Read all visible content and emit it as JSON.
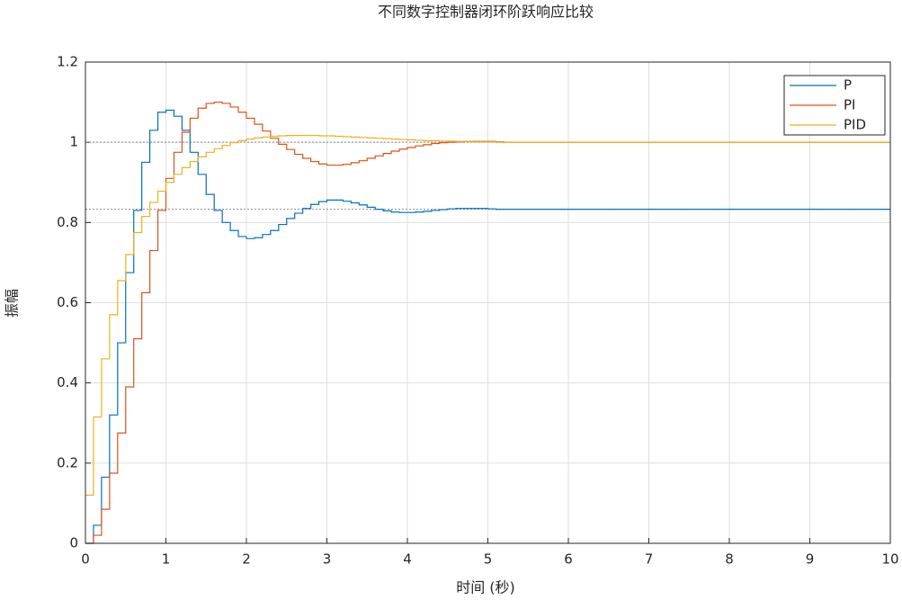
{
  "chart_data": {
    "type": "stairs",
    "title": "不同数字控制器闭环阶跃响应比较",
    "x_label": "时间 (秒)",
    "y_label": "振幅",
    "x": [
      0,
      0.1,
      0.2,
      0.3,
      0.4,
      0.5,
      0.6,
      0.7,
      0.8,
      0.9,
      1,
      1.1,
      1.2,
      1.3,
      1.4,
      1.5,
      1.6,
      1.7,
      1.8,
      1.9,
      2,
      2.1,
      2.2,
      2.3,
      2.4,
      2.5,
      2.6,
      2.7,
      2.8,
      2.9,
      3,
      3.1,
      3.2,
      3.3,
      3.4,
      3.5,
      3.6,
      3.7,
      3.8,
      3.9,
      4,
      4.1,
      4.2,
      4.3,
      4.4,
      4.5,
      4.6,
      4.7,
      4.8,
      4.9,
      5,
      5.1,
      5.2,
      5.3,
      5.4,
      5.5,
      5.6,
      5.7,
      5.8,
      5.9,
      6,
      6.1,
      6.2,
      6.3,
      6.4,
      6.5,
      6.6,
      6.7,
      6.8,
      6.9,
      7,
      7.1,
      7.2,
      7.3,
      7.4,
      7.5,
      7.6,
      7.7,
      7.8,
      7.9,
      8,
      8.1,
      8.2,
      8.3,
      8.4,
      8.5,
      8.6,
      8.7,
      8.8,
      8.9,
      9,
      9.1,
      9.2,
      9.3,
      9.4,
      9.5,
      9.6,
      9.7,
      9.8,
      9.9,
      10
    ],
    "series": [
      {
        "name": "P",
        "color": "#0072BD",
        "values": [
          0,
          0.045,
          0.165,
          0.32,
          0.5,
          0.675,
          0.83,
          0.95,
          1.03,
          1.075,
          1.08,
          1.065,
          1.03,
          0.975,
          0.92,
          0.87,
          0.83,
          0.8,
          0.78,
          0.765,
          0.76,
          0.762,
          0.77,
          0.78,
          0.795,
          0.81,
          0.823,
          0.835,
          0.845,
          0.852,
          0.856,
          0.856,
          0.853,
          0.849,
          0.844,
          0.838,
          0.833,
          0.829,
          0.826,
          0.825,
          0.825,
          0.826,
          0.828,
          0.83,
          0.832,
          0.834,
          0.835,
          0.835,
          0.835,
          0.835,
          0.834,
          0.833,
          0.833,
          0.833,
          0.833,
          0.833,
          0.833,
          0.833,
          0.833,
          0.833,
          0.833,
          0.833,
          0.833,
          0.833,
          0.833,
          0.833,
          0.833,
          0.833,
          0.833,
          0.833,
          0.833,
          0.833,
          0.833,
          0.833,
          0.833,
          0.833,
          0.833,
          0.833,
          0.833,
          0.833,
          0.833,
          0.833,
          0.833,
          0.833,
          0.833,
          0.833,
          0.833,
          0.833,
          0.833,
          0.833,
          0.833,
          0.833,
          0.833,
          0.833,
          0.833,
          0.833,
          0.833,
          0.833,
          0.833,
          0.833,
          0.833
        ]
      },
      {
        "name": "PI",
        "color": "#D95319",
        "values": [
          0,
          0.02,
          0.085,
          0.175,
          0.275,
          0.39,
          0.51,
          0.625,
          0.73,
          0.83,
          0.91,
          0.975,
          1.025,
          1.06,
          1.085,
          1.097,
          1.1,
          1.097,
          1.088,
          1.075,
          1.06,
          1.045,
          1.028,
          1.01,
          0.995,
          0.982,
          0.97,
          0.96,
          0.952,
          0.946,
          0.943,
          0.943,
          0.945,
          0.949,
          0.954,
          0.96,
          0.966,
          0.972,
          0.978,
          0.983,
          0.987,
          0.991,
          0.994,
          0.997,
          0.999,
          1,
          1.001,
          1.002,
          1.002,
          1.002,
          1.002,
          1.001,
          1,
          1,
          1,
          1,
          1,
          1,
          1,
          1,
          1,
          1,
          1,
          1,
          1,
          1,
          1,
          1,
          1,
          1,
          1,
          1,
          1,
          1,
          1,
          1,
          1,
          1,
          1,
          1,
          1,
          1,
          1,
          1,
          1,
          1,
          1,
          1,
          1,
          1,
          1,
          1,
          1,
          1,
          1,
          1,
          1,
          1,
          1,
          1,
          1
        ]
      },
      {
        "name": "PID",
        "color": "#EDB120",
        "values": [
          0.12,
          0.315,
          0.46,
          0.57,
          0.655,
          0.72,
          0.775,
          0.815,
          0.85,
          0.878,
          0.9,
          0.92,
          0.937,
          0.952,
          0.964,
          0.975,
          0.984,
          0.992,
          0.999,
          1.004,
          1.008,
          1.011,
          1.013,
          1.015,
          1.016,
          1.017,
          1.017,
          1.017,
          1.017,
          1.016,
          1.016,
          1.015,
          1.014,
          1.013,
          1.012,
          1.011,
          1.01,
          1.009,
          1.008,
          1.007,
          1.006,
          1.005,
          1.004,
          1.004,
          1.003,
          1.003,
          1.002,
          1.002,
          1.001,
          1.001,
          1.001,
          1,
          1,
          1,
          1,
          1,
          1,
          1,
          1,
          1,
          1,
          1,
          1,
          1,
          1,
          1,
          1,
          1,
          1,
          1,
          1,
          1,
          1,
          1,
          1,
          1,
          1,
          1,
          1,
          1,
          1,
          1,
          1,
          1,
          1,
          1,
          1,
          1,
          1,
          1,
          1,
          1,
          1,
          1,
          1,
          1,
          1,
          1,
          1,
          1,
          1
        ]
      }
    ],
    "reference_lines": [
      1,
      0.833
    ],
    "xlim": [
      0,
      10
    ],
    "xticks": [
      0,
      1,
      2,
      3,
      4,
      5,
      6,
      7,
      8,
      9,
      10
    ],
    "ylim": [
      0,
      1.2
    ],
    "yticks": [
      0,
      0.2,
      0.4,
      0.6,
      0.8,
      1,
      1.2
    ],
    "grid": true,
    "legend": "northeast"
  }
}
